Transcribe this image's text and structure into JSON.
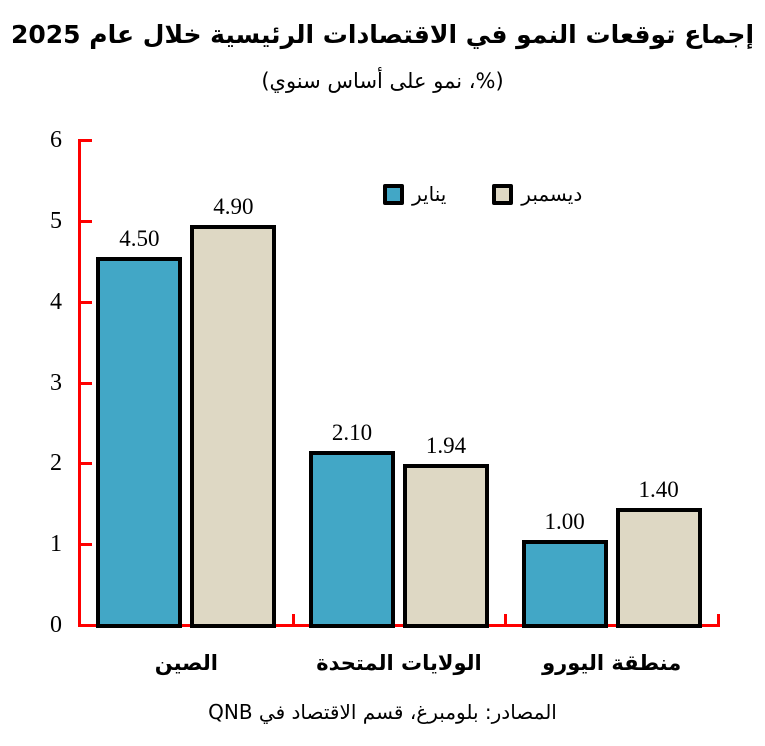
{
  "title": "إجماع توقعات النمو في الاقتصادات الرئيسية خلال عام 2025",
  "subtitle": "(%، نمو على أساس سنوي)",
  "source": "المصادر: بلومبرغ، قسم الاقتصاد في QNB",
  "colors": {
    "january": "#42a7c6",
    "december": "#ded8c4",
    "axis": "#fe0000",
    "bar_border": "#000000",
    "text": "#000000",
    "background": "#ffffff"
  },
  "chart_data": {
    "type": "bar",
    "categories": [
      "الصين",
      "الولايات المتحدة",
      "منطقة اليورو"
    ],
    "series": [
      {
        "name": "يناير",
        "color_key": "january",
        "values": [
          4.5,
          2.1,
          1.0
        ]
      },
      {
        "name": "ديسمبر",
        "color_key": "december",
        "values": [
          4.9,
          1.94,
          1.4
        ]
      }
    ],
    "value_label_decimals": 2,
    "ylim": [
      0,
      6
    ],
    "yticks": [
      0,
      1,
      2,
      3,
      4,
      5,
      6
    ],
    "grid": false,
    "legend_position": "top-center-inside",
    "axis_style": "red-with-inward-ticks"
  }
}
